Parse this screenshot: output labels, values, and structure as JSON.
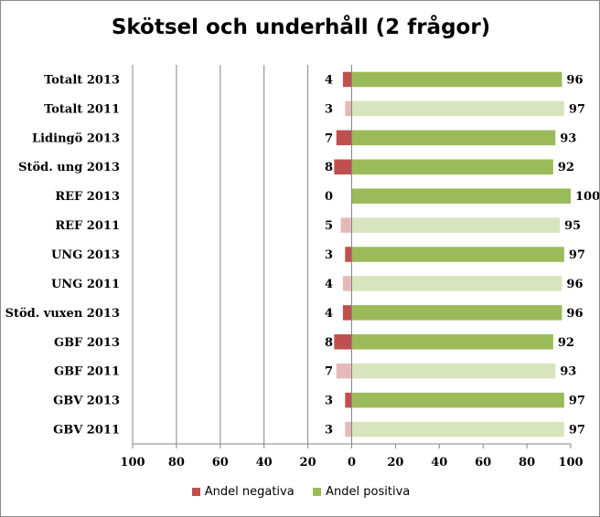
{
  "chart_data": {
    "type": "bar",
    "orientation": "horizontal",
    "title": "Skötsel och underhåll (2 frågor)",
    "categories": [
      "Totalt 2013",
      "Totalt 2011",
      "Lidingö 2013",
      "Stöd. ung 2013",
      "REF 2013",
      "REF 2011",
      "UNG 2013",
      "UNG 2011",
      "Stöd. vuxen 2013",
      "GBF 2013",
      "GBF 2011",
      "GBV 2013",
      "GBV 2011"
    ],
    "series": [
      {
        "name": "Andel negativa",
        "values": [
          4,
          3,
          7,
          8,
          0,
          5,
          3,
          4,
          4,
          8,
          7,
          3,
          3
        ]
      },
      {
        "name": "Andel positiva",
        "values": [
          96,
          97,
          93,
          92,
          100,
          95,
          97,
          96,
          96,
          92,
          93,
          97,
          97
        ]
      }
    ],
    "year_2011_lighter": true,
    "xlim": [
      -100,
      100
    ],
    "x_ticks": [
      "100",
      "80",
      "60",
      "40",
      "20",
      "0",
      "20",
      "40",
      "60",
      "80",
      "100"
    ],
    "grid": "vertical gridlines on negative side",
    "legend_position": "bottom",
    "colors": {
      "negative": "#c0504d",
      "negative_light": "#e6b9b8",
      "positive": "#9bbb59",
      "positive_light": "#d7e4bd",
      "gridline": "#868686",
      "axis": "#868686"
    }
  },
  "legend": {
    "negative_label": "Andel negativa",
    "positive_label": "Andel positiva"
  }
}
